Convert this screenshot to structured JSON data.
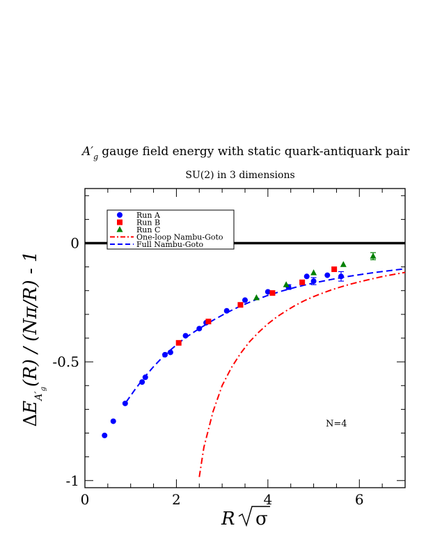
{
  "chart_data": {
    "type": "scatter",
    "title": "gauge field energy with static quark-antiquark pair",
    "title_symbol": "A′",
    "title_symbol_sub": "g",
    "subtitle": "SU(2) in 3 dimensions",
    "xlabel_main": "R",
    "xlabel_sqrt": "σ",
    "ylabel": {
      "delta": "Δ",
      "E": "E",
      "sub_A": "A′",
      "sub_g": "g",
      "mid": "(R) / (Nπ/R) - 1"
    },
    "xlim": [
      0,
      7
    ],
    "ylim": [
      -1.03,
      0.23
    ],
    "x_ticks": [
      0,
      2,
      4,
      6
    ],
    "x_tick_labels": [
      "0",
      "2",
      "4",
      "6"
    ],
    "y_ticks": [
      0,
      -0.5,
      -1
    ],
    "y_tick_labels": [
      "0",
      "-0.5",
      "-1"
    ],
    "zero_line": 0,
    "annotation": "N=4",
    "legend_position": "top-left",
    "series": [
      {
        "name": "Run A",
        "marker": "circle",
        "color": "#0000ff",
        "points": [
          [
            0.43,
            -0.81,
            0
          ],
          [
            0.62,
            -0.75,
            0
          ],
          [
            0.88,
            -0.675,
            0
          ],
          [
            1.25,
            -0.585,
            0
          ],
          [
            1.32,
            -0.565,
            0
          ],
          [
            1.75,
            -0.47,
            0
          ],
          [
            1.87,
            -0.46,
            0
          ],
          [
            2.2,
            -0.39,
            0
          ],
          [
            2.5,
            -0.36,
            0
          ],
          [
            2.65,
            -0.335,
            0
          ],
          [
            3.1,
            -0.285,
            0
          ],
          [
            3.5,
            -0.24,
            0
          ],
          [
            4.0,
            -0.205,
            0
          ],
          [
            4.45,
            -0.185,
            0.01
          ],
          [
            4.85,
            -0.14,
            0
          ],
          [
            5.0,
            -0.16,
            0.015
          ],
          [
            5.3,
            -0.135,
            0
          ],
          [
            5.6,
            -0.14,
            0.02
          ]
        ]
      },
      {
        "name": "Run B",
        "marker": "square",
        "color": "#ff0000",
        "points": [
          [
            2.05,
            -0.42,
            0
          ],
          [
            2.7,
            -0.33,
            0
          ],
          [
            3.4,
            -0.26,
            0
          ],
          [
            4.1,
            -0.21,
            0
          ],
          [
            4.75,
            -0.165,
            0
          ],
          [
            5.45,
            -0.11,
            0
          ]
        ]
      },
      {
        "name": "Run C",
        "marker": "triangle",
        "color": "#008000",
        "points": [
          [
            3.75,
            -0.23,
            0
          ],
          [
            4.4,
            -0.175,
            0
          ],
          [
            5.0,
            -0.125,
            0
          ],
          [
            5.65,
            -0.09,
            0
          ],
          [
            6.3,
            -0.055,
            0.015
          ]
        ]
      }
    ],
    "curves": [
      {
        "name": "One-loop Nambu-Goto",
        "style": "dash-dot",
        "color": "#ff0000",
        "x": [
          2.5,
          2.6,
          2.8,
          3.0,
          3.2,
          3.4,
          3.6,
          3.8,
          4.0,
          4.2,
          4.4,
          4.6,
          4.8,
          5.0,
          5.2,
          5.4,
          5.6,
          5.8,
          6.0,
          6.2,
          6.4,
          6.6,
          6.8,
          7.0
        ],
        "y": [
          -0.985,
          -0.86,
          -0.71,
          -0.6,
          -0.525,
          -0.465,
          -0.415,
          -0.375,
          -0.34,
          -0.31,
          -0.285,
          -0.262,
          -0.242,
          -0.225,
          -0.21,
          -0.196,
          -0.184,
          -0.173,
          -0.163,
          -0.154,
          -0.145,
          -0.137,
          -0.13,
          -0.123
        ]
      },
      {
        "name": "Full Nambu-Goto",
        "style": "dashed",
        "color": "#0000ff",
        "x": [
          0.9,
          1.1,
          1.3,
          1.5,
          1.7,
          1.9,
          2.1,
          2.3,
          2.5,
          2.8,
          3.1,
          3.4,
          3.7,
          4.0,
          4.3,
          4.6,
          4.9,
          5.2,
          5.5,
          5.8,
          6.1,
          6.4,
          6.7,
          7.0
        ],
        "y": [
          -0.67,
          -0.615,
          -0.565,
          -0.52,
          -0.48,
          -0.445,
          -0.413,
          -0.385,
          -0.36,
          -0.325,
          -0.293,
          -0.265,
          -0.241,
          -0.22,
          -0.202,
          -0.186,
          -0.172,
          -0.16,
          -0.149,
          -0.139,
          -0.13,
          -0.122,
          -0.115,
          -0.108
        ]
      }
    ]
  }
}
